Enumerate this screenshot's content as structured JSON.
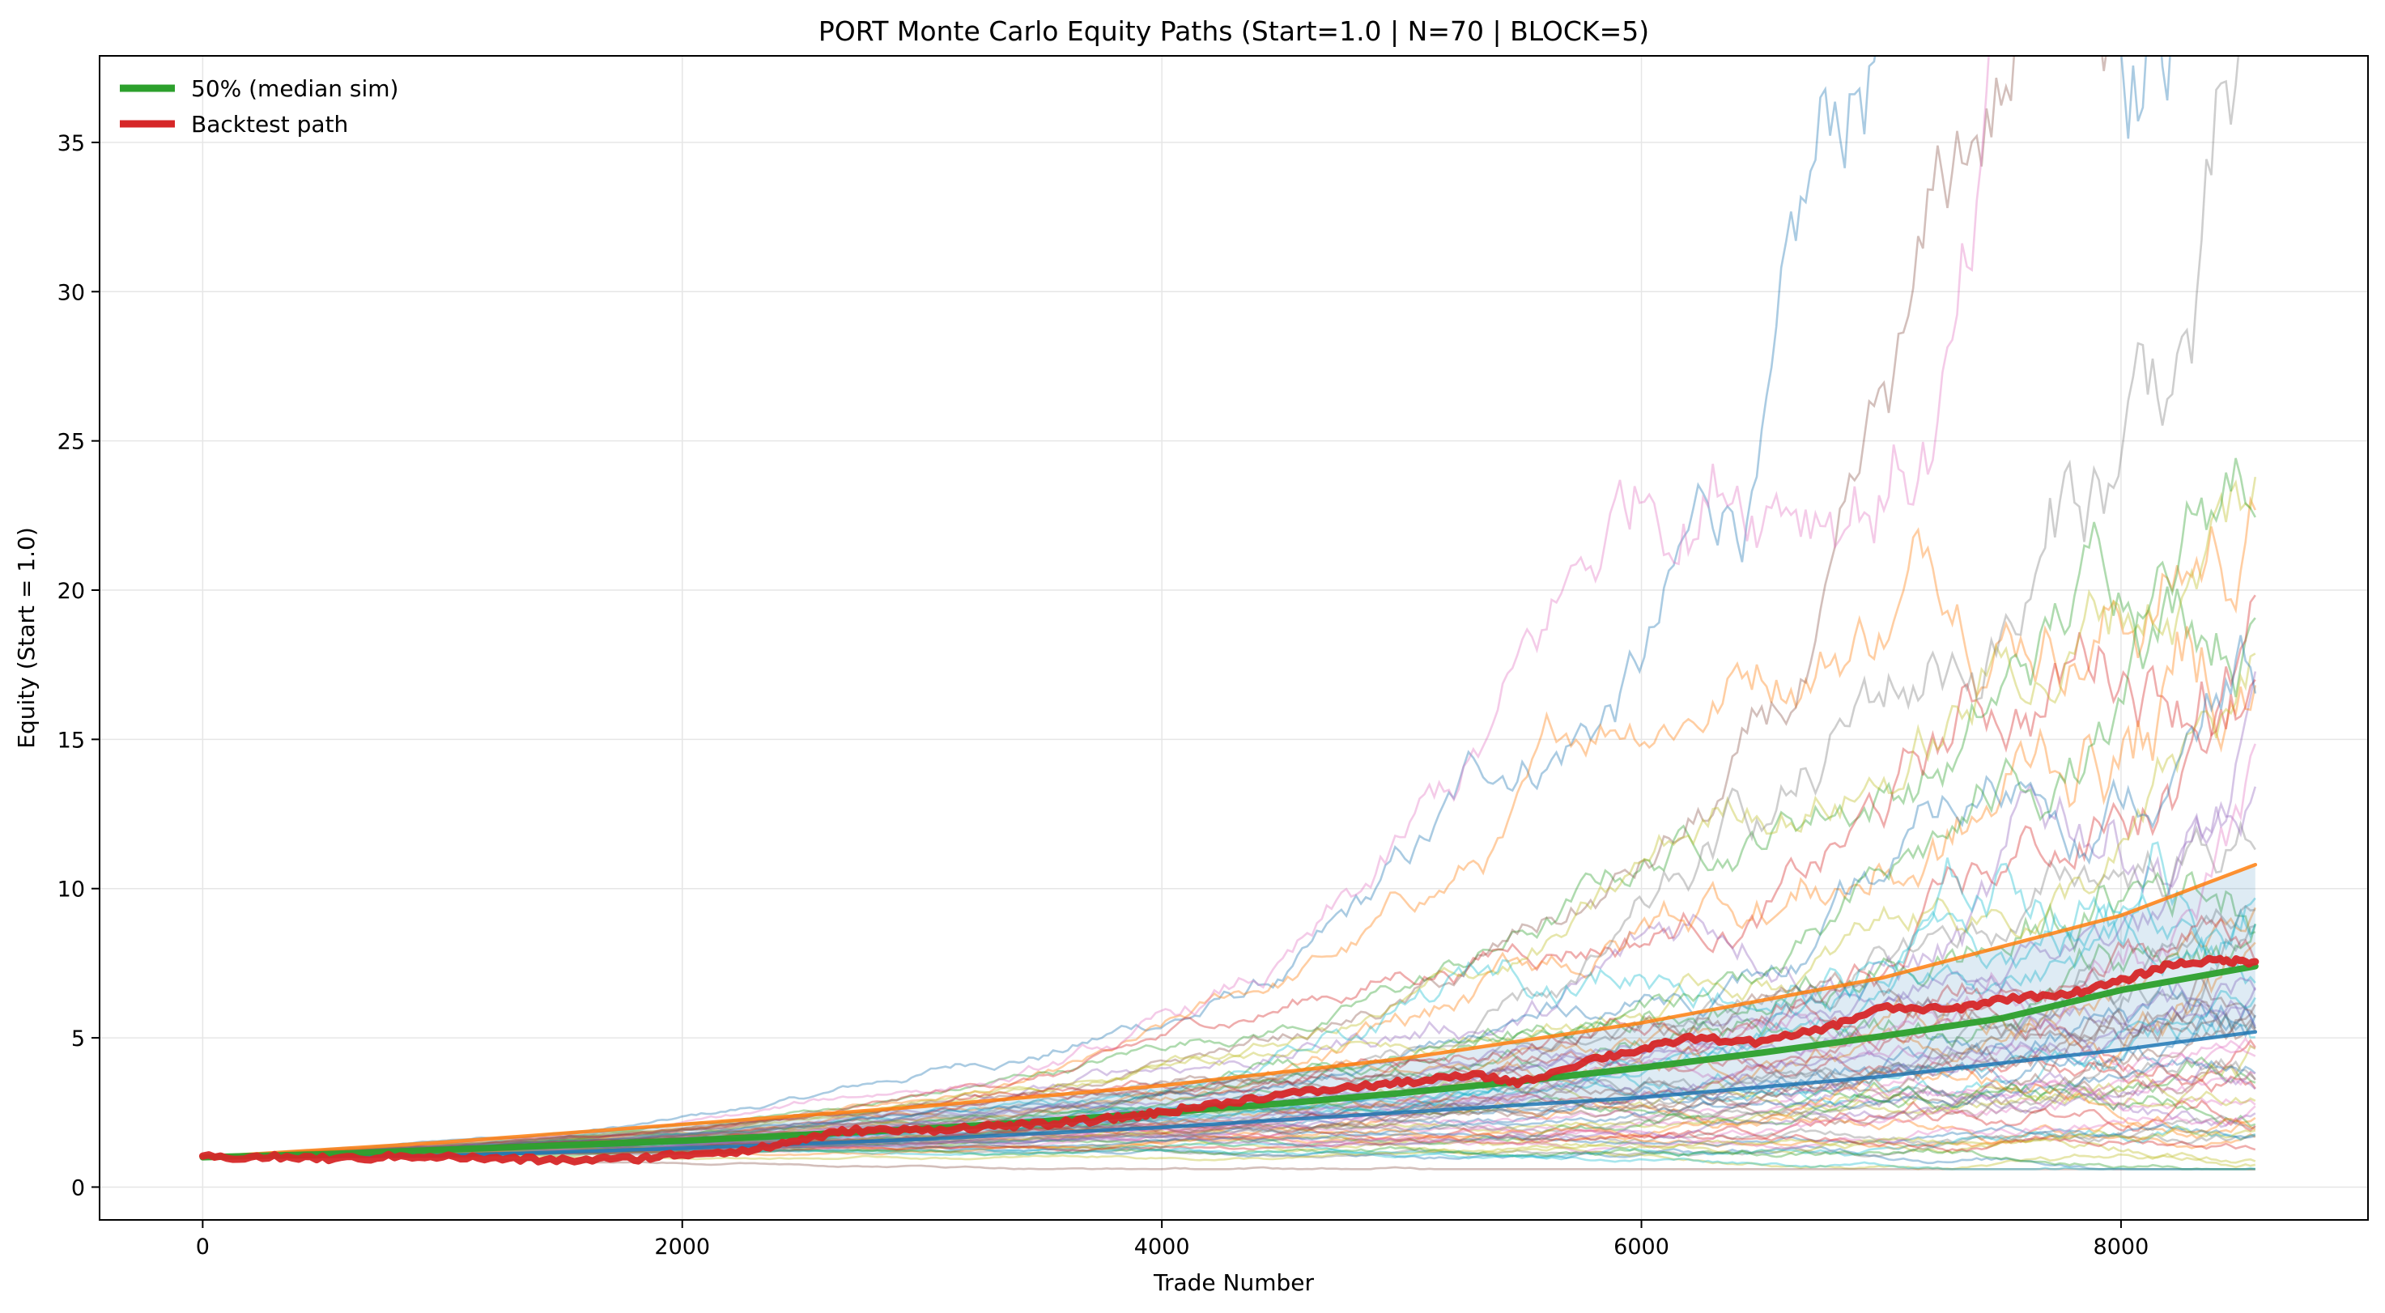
{
  "chart_data": {
    "type": "line",
    "title": "PORT Monte Carlo Equity Paths (Start=1.0 | N=70 | BLOCK=5)",
    "xlabel": "Trade Number",
    "ylabel": "Equity (Start = 1.0)",
    "xlim": [
      -430,
      9030
    ],
    "ylim": [
      -1.1,
      37.9
    ],
    "x_ticks": [
      0,
      2000,
      4000,
      6000,
      8000
    ],
    "x_tick_labels": [
      "0",
      "2000",
      "4000",
      "6000",
      "8000"
    ],
    "y_ticks": [
      0,
      5,
      10,
      15,
      20,
      25,
      30,
      35
    ],
    "y_tick_labels": [
      "0",
      "5",
      "10",
      "15",
      "20",
      "25",
      "30",
      "35"
    ],
    "grid": true,
    "legend_position": "top-left",
    "legend": [
      {
        "label": "50% (median sim)",
        "color": "#2ca02c"
      },
      {
        "label": "Backtest path",
        "color": "#d62728"
      }
    ],
    "num_simulated_paths": 70,
    "sim_path_colors": [
      "#1f77b4",
      "#ff7f0e",
      "#2ca02c",
      "#d62728",
      "#9467bd",
      "#8c564b",
      "#e377c2",
      "#7f7f7f",
      "#bcbd22",
      "#17becf"
    ],
    "sim_path_final_values": [
      35.8,
      24.8,
      24.4,
      22.5,
      17.2,
      16.8,
      15.5,
      15.2,
      14.6,
      14.2,
      13.8,
      13.4,
      12.8,
      12.5,
      12.2,
      11.9,
      11.6,
      11.3,
      11.0,
      10.7,
      10.4,
      10.1,
      9.8,
      9.5,
      9.3,
      9.0,
      8.8,
      8.6,
      8.4,
      8.2,
      8.0,
      7.8,
      7.6,
      7.4,
      7.2,
      7.0,
      6.8,
      6.6,
      6.4,
      6.2,
      6.0,
      5.8,
      5.6,
      5.4,
      5.2,
      5.0,
      4.8,
      4.6,
      4.4,
      4.2,
      4.0,
      3.8,
      3.6,
      3.4,
      3.2,
      3.0,
      2.9,
      2.8,
      2.7,
      2.6,
      2.5,
      2.4,
      2.35,
      2.3,
      2.2,
      2.1,
      2.0,
      1.95,
      1.9,
      1.8
    ],
    "x_end": 8560,
    "percentile_band": {
      "x": [
        0,
        1000,
        2000,
        3000,
        4000,
        5000,
        6000,
        7000,
        8000,
        8560
      ],
      "upper": [
        1.0,
        1.5,
        2.1,
        2.7,
        3.4,
        4.3,
        5.5,
        7.0,
        9.1,
        10.8
      ],
      "lower": [
        1.0,
        1.05,
        1.3,
        1.6,
        2.0,
        2.5,
        3.0,
        3.7,
        4.6,
        5.2
      ]
    },
    "series": [
      {
        "name": "50% (median sim)",
        "color": "#2ca02c",
        "x": [
          0,
          500,
          1000,
          1500,
          2000,
          2500,
          3000,
          3500,
          4000,
          4500,
          5000,
          5500,
          6000,
          6500,
          7000,
          7500,
          8000,
          8560
        ],
        "values": [
          1.0,
          1.1,
          1.25,
          1.4,
          1.55,
          1.75,
          1.95,
          2.2,
          2.5,
          2.8,
          3.15,
          3.55,
          4.0,
          4.5,
          5.05,
          5.65,
          6.6,
          7.4
        ]
      },
      {
        "name": "Backtest path",
        "color": "#d62728",
        "x": [
          0,
          300,
          600,
          900,
          1200,
          1500,
          1800,
          2000,
          2300,
          2500,
          2700,
          3000,
          3300,
          3500,
          3800,
          4000,
          4200,
          4500,
          4800,
          5000,
          5300,
          5500,
          5800,
          6000,
          6200,
          6500,
          6800,
          7000,
          7300,
          7500,
          7800,
          8000,
          8200,
          8400,
          8560
        ],
        "values": [
          1.0,
          1.0,
          0.95,
          1.05,
          0.95,
          0.9,
          0.95,
          1.1,
          1.25,
          1.6,
          1.9,
          1.9,
          2.05,
          2.1,
          2.3,
          2.5,
          2.75,
          3.1,
          3.35,
          3.5,
          3.75,
          3.5,
          4.3,
          4.6,
          5.0,
          4.85,
          5.4,
          6.0,
          5.95,
          6.3,
          6.5,
          6.9,
          7.45,
          7.6,
          7.55
        ]
      },
      {
        "color": "#ff7f0e",
        "x": [
          0,
          1000,
          2000,
          3000,
          4000,
          5000,
          6000,
          7000,
          8000,
          8560
        ],
        "values": [
          1.0,
          1.5,
          2.1,
          2.7,
          3.4,
          4.3,
          5.5,
          7.0,
          9.1,
          10.8
        ]
      },
      {
        "color": "#1f77b4",
        "x": [
          0,
          1000,
          2000,
          3000,
          4000,
          5000,
          6000,
          7000,
          8000,
          8560
        ],
        "values": [
          1.0,
          1.05,
          1.3,
          1.6,
          2.0,
          2.5,
          3.0,
          3.7,
          4.6,
          5.2
        ]
      }
    ]
  }
}
